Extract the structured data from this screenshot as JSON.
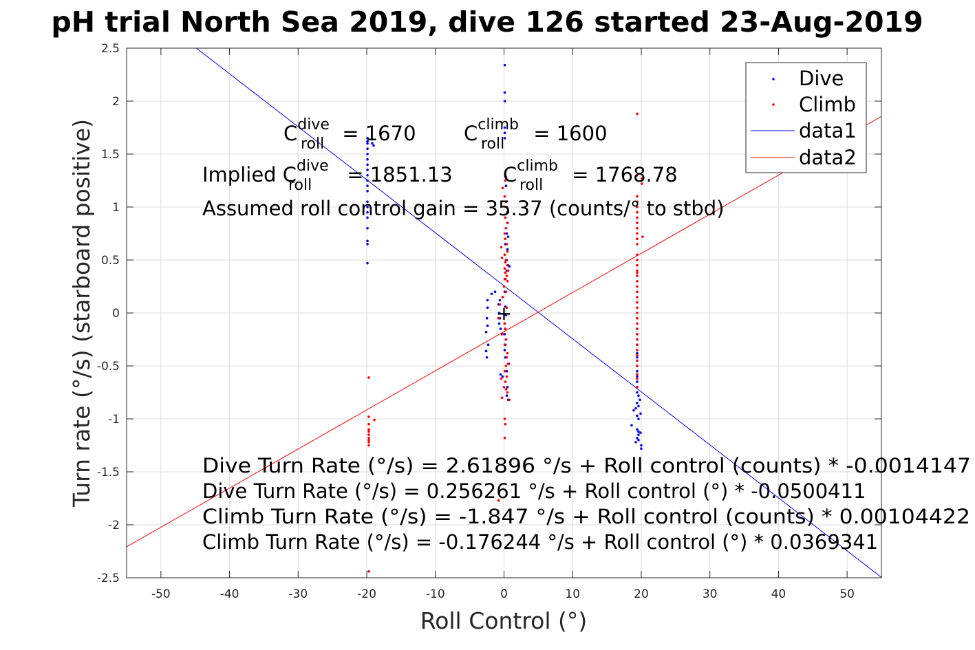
{
  "chart_data": {
    "type": "scatter",
    "title": "pH trial North Sea 2019, dive 126 started 23-Aug-2019",
    "xlabel": "Roll Control (°)",
    "ylabel": "Turn rate (°/s) (starboard positive)",
    "xlim": [
      -55,
      55
    ],
    "ylim": [
      -2.5,
      2.5
    ],
    "xticks": [
      -50,
      -40,
      -30,
      -20,
      -10,
      0,
      10,
      20,
      30,
      40,
      50
    ],
    "yticks": [
      -2.5,
      -2,
      -1.5,
      -1,
      -0.5,
      0,
      0.5,
      1,
      1.5,
      2,
      2.5
    ],
    "xtick_labels": [
      "-50",
      "-40",
      "-30",
      "-20",
      "-10",
      "0",
      "10",
      "20",
      "30",
      "40",
      "50"
    ],
    "ytick_labels": [
      "-2.5",
      "-2",
      "-1.5",
      "-1",
      "-0.5",
      "0",
      "0.5",
      "1",
      "1.5",
      "2",
      "2.5"
    ],
    "grid": true,
    "legend_position": "top-right",
    "series": [
      {
        "name": "Dive",
        "kind": "points",
        "color": "#0000ff",
        "points": [
          [
            -19.9,
            1.65
          ],
          [
            -19.9,
            1.62
          ],
          [
            -19.9,
            1.6
          ],
          [
            -19.9,
            1.55
          ],
          [
            -19.9,
            1.5
          ],
          [
            -19.9,
            1.45
          ],
          [
            -19.9,
            1.4
          ],
          [
            -19.9,
            1.35
          ],
          [
            -19.9,
            1.3
          ],
          [
            -19.9,
            1.25
          ],
          [
            -19.9,
            1.2
          ],
          [
            -19.9,
            1.15
          ],
          [
            -19.9,
            1.05
          ],
          [
            -19.9,
            1.0
          ],
          [
            -19.9,
            0.95
          ],
          [
            -19.9,
            0.9
          ],
          [
            -19.9,
            0.8
          ],
          [
            -19.9,
            0.68
          ],
          [
            -19.9,
            0.65
          ],
          [
            -19.9,
            0.47
          ],
          [
            -19.2,
            1.6
          ],
          [
            -19.0,
            1.58
          ],
          [
            0.1,
            2.34
          ],
          [
            0.1,
            2.08
          ],
          [
            0.1,
            2.0
          ],
          [
            0.1,
            1.75
          ],
          [
            0.1,
            1.7
          ],
          [
            0.1,
            1.65
          ],
          [
            0.3,
            1.28
          ],
          [
            0.3,
            1.2
          ],
          [
            0.5,
            0.95
          ],
          [
            0.5,
            0.85
          ],
          [
            0.4,
            0.75
          ],
          [
            0.6,
            0.72
          ],
          [
            0.2,
            0.65
          ],
          [
            0.5,
            0.6
          ],
          [
            0.4,
            0.5
          ],
          [
            0.6,
            0.45
          ],
          [
            0.8,
            0.44
          ],
          [
            0.4,
            0.4
          ],
          [
            0.2,
            0.32
          ],
          [
            0.1,
            0.2
          ],
          [
            -1.3,
            0.2
          ],
          [
            -1.8,
            0.18
          ],
          [
            -2.4,
            0.12
          ],
          [
            -2.4,
            0.05
          ],
          [
            -2.5,
            -0.05
          ],
          [
            -2.4,
            -0.12
          ],
          [
            -2.6,
            -0.18
          ],
          [
            -2.3,
            -0.3
          ],
          [
            -2.5,
            -0.42
          ],
          [
            -2.6,
            -0.36
          ],
          [
            -0.6,
            0.12
          ],
          [
            -0.8,
            0.08
          ],
          [
            -0.7,
            0.0
          ],
          [
            -0.6,
            -0.05
          ],
          [
            -0.7,
            -0.1
          ],
          [
            -0.5,
            -0.15
          ],
          [
            -0.3,
            -0.2
          ],
          [
            0.2,
            0.06
          ],
          [
            0.3,
            -0.02
          ],
          [
            0.1,
            -0.1
          ],
          [
            0.2,
            -0.15
          ],
          [
            0.1,
            -0.2
          ],
          [
            0.3,
            -0.25
          ],
          [
            0.2,
            -0.3
          ],
          [
            0.1,
            -0.35
          ],
          [
            0.2,
            -0.42
          ],
          [
            0.7,
            -0.48
          ],
          [
            0.4,
            -0.55
          ],
          [
            -0.2,
            -0.6
          ],
          [
            0.5,
            -0.7
          ],
          [
            0.4,
            -0.78
          ],
          [
            0.6,
            -0.82
          ],
          [
            -0.5,
            -0.58
          ],
          [
            19.4,
            -0.2
          ],
          [
            19.4,
            -0.25
          ],
          [
            19.4,
            -0.3
          ],
          [
            19.4,
            -0.38
          ],
          [
            19.4,
            -0.42
          ],
          [
            19.4,
            -0.5
          ],
          [
            19.4,
            -0.55
          ],
          [
            19.4,
            -0.6
          ],
          [
            19.4,
            -0.65
          ],
          [
            19.4,
            -0.7
          ],
          [
            19.4,
            -0.75
          ],
          [
            19.6,
            -0.78
          ],
          [
            19.8,
            -0.82
          ],
          [
            19.4,
            -0.85
          ],
          [
            19.6,
            -0.88
          ],
          [
            19.2,
            -0.9
          ],
          [
            19.9,
            -0.95
          ],
          [
            18.9,
            -0.92
          ],
          [
            19.4,
            -0.97
          ],
          [
            19.6,
            -1.0
          ],
          [
            18.6,
            -1.06
          ],
          [
            19.4,
            -1.1
          ],
          [
            19.6,
            -1.12
          ],
          [
            19.9,
            -1.13
          ],
          [
            19.6,
            -1.15
          ],
          [
            19.4,
            -1.18
          ],
          [
            19.6,
            -1.2
          ],
          [
            19.2,
            -1.22
          ],
          [
            20.0,
            -1.25
          ],
          [
            20.0,
            -1.28
          ]
        ]
      },
      {
        "name": "Climb",
        "kind": "points",
        "color": "#ff0000",
        "points": [
          [
            -19.7,
            -0.61
          ],
          [
            -19.7,
            -0.98
          ],
          [
            -19.7,
            -1.05
          ],
          [
            -19.7,
            -1.1
          ],
          [
            -19.7,
            -1.12
          ],
          [
            -19.7,
            -1.15
          ],
          [
            -19.7,
            -1.18
          ],
          [
            -19.7,
            -1.2
          ],
          [
            -19.7,
            -1.22
          ],
          [
            -19.7,
            -1.25
          ],
          [
            -18.9,
            -1.01
          ],
          [
            -19.7,
            -2.44
          ],
          [
            0.2,
            1.3
          ],
          [
            0.2,
            1.25
          ],
          [
            -0.2,
            1.18
          ],
          [
            0.1,
            1.1
          ],
          [
            0.3,
            1.05
          ],
          [
            0.4,
            1.0
          ],
          [
            0.6,
            0.95
          ],
          [
            0.2,
            0.9
          ],
          [
            0.5,
            0.85
          ],
          [
            0.3,
            0.8
          ],
          [
            0.1,
            0.75
          ],
          [
            0.2,
            0.7
          ],
          [
            0.4,
            0.65
          ],
          [
            -0.4,
            0.62
          ],
          [
            0.5,
            0.58
          ],
          [
            0.1,
            0.55
          ],
          [
            -0.3,
            0.52
          ],
          [
            0.3,
            0.5
          ],
          [
            0.2,
            0.48
          ],
          [
            0.5,
            0.45
          ],
          [
            0.1,
            0.42
          ],
          [
            0.6,
            0.4
          ],
          [
            0.2,
            0.38
          ],
          [
            0.4,
            0.35
          ],
          [
            0.1,
            0.32
          ],
          [
            0.5,
            0.3
          ],
          [
            0.0,
            0.25
          ],
          [
            0.3,
            0.2
          ],
          [
            -0.2,
            0.15
          ],
          [
            -0.6,
            0.08
          ],
          [
            0.4,
            0.05
          ],
          [
            -0.8,
            -0.05
          ],
          [
            0.1,
            -0.1
          ],
          [
            0.2,
            -0.15
          ],
          [
            -0.2,
            -0.2
          ],
          [
            0.3,
            -0.25
          ],
          [
            0.1,
            -0.3
          ],
          [
            0.5,
            -0.38
          ],
          [
            0.4,
            -0.42
          ],
          [
            0.6,
            -0.48
          ],
          [
            0.3,
            -0.5
          ],
          [
            0.1,
            -0.55
          ],
          [
            0.4,
            -0.6
          ],
          [
            -0.4,
            -0.62
          ],
          [
            0.2,
            -0.65
          ],
          [
            0.0,
            -0.7
          ],
          [
            0.3,
            -0.72
          ],
          [
            0.5,
            -0.75
          ],
          [
            -0.3,
            -0.8
          ],
          [
            0.8,
            -0.82
          ],
          [
            0.1,
            -1.0
          ],
          [
            0.2,
            -1.05
          ],
          [
            0.1,
            -1.18
          ],
          [
            -0.8,
            -1.77
          ],
          [
            19.4,
            1.88
          ],
          [
            19.4,
            1.3
          ],
          [
            20.1,
            1.27
          ],
          [
            20.1,
            1.22
          ],
          [
            19.4,
            1.1
          ],
          [
            19.4,
            1.05
          ],
          [
            19.4,
            1.0
          ],
          [
            19.4,
            0.95
          ],
          [
            19.4,
            0.9
          ],
          [
            19.4,
            0.85
          ],
          [
            19.4,
            0.8
          ],
          [
            19.4,
            0.75
          ],
          [
            19.4,
            0.7
          ],
          [
            19.4,
            0.65
          ],
          [
            20.2,
            0.72
          ],
          [
            19.4,
            0.55
          ],
          [
            19.4,
            0.5
          ],
          [
            19.4,
            0.45
          ],
          [
            19.4,
            0.4
          ],
          [
            19.4,
            0.38
          ],
          [
            19.4,
            0.35
          ],
          [
            19.4,
            0.3
          ],
          [
            19.4,
            0.25
          ],
          [
            19.4,
            0.2
          ],
          [
            19.4,
            0.15
          ],
          [
            19.4,
            0.1
          ],
          [
            19.4,
            0.05
          ],
          [
            19.4,
            0.0
          ],
          [
            19.4,
            -0.05
          ],
          [
            19.4,
            -0.1
          ],
          [
            19.4,
            -0.15
          ],
          [
            19.4,
            -0.2
          ],
          [
            19.4,
            -0.25
          ],
          [
            19.4,
            -0.3
          ],
          [
            19.4,
            -0.35
          ],
          [
            19.4,
            -0.4
          ],
          [
            19.4,
            -0.45
          ],
          [
            19.4,
            -0.5
          ],
          [
            19.4,
            -0.58
          ],
          [
            19.4,
            -0.62
          ],
          [
            19.4,
            -0.7
          ]
        ]
      },
      {
        "name": "data1",
        "kind": "line",
        "color": "#0000ff",
        "intercept": 0.256261,
        "slope": -0.0500411
      },
      {
        "name": "data2",
        "kind": "line",
        "color": "#ff0000",
        "intercept": -0.176244,
        "slope": 0.0369341
      }
    ],
    "center_marker": {
      "x": 0,
      "y": 0,
      "symbol": "+"
    },
    "annotations": {
      "c_dive": {
        "prefix": "C",
        "sup": "dive",
        "sub": "roll",
        "suffix": " = 1670"
      },
      "c_climb": {
        "prefix": "C",
        "sup": "climb",
        "sub": "roll",
        "suffix": " = 1600"
      },
      "implied_dive": {
        "prefix": "Implied C",
        "sup": "dive",
        "sub": "roll",
        "suffix": " = 1851.13"
      },
      "implied_climb": {
        "prefix": "C",
        "sup": "climb",
        "sub": "roll",
        "suffix": " = 1768.78"
      },
      "gain": "Assumed roll control gain = 35.37 (counts/° to stbd)",
      "eq1": "Dive Turn Rate (°/s) = 2.61896 °/s + Roll control (counts) * -0.0014147",
      "eq2": "Dive Turn Rate (°/s) = 0.256261 °/s + Roll control (°) * -0.0500411",
      "eq3": "Climb Turn Rate (°/s) = -1.847 °/s + Roll control (counts) * 0.00104422",
      "eq4": "Climb Turn Rate (°/s) = -0.176244 °/s + Roll control (°) * 0.0369341"
    }
  }
}
